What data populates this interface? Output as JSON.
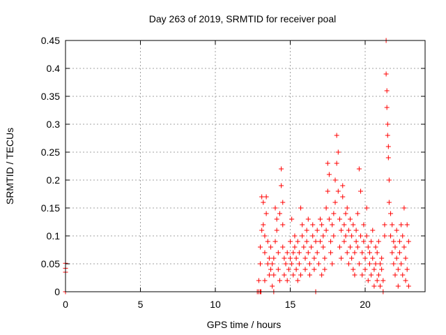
{
  "chart_data": {
    "type": "scatter",
    "title": "Day 263 of 2019, SRMTID for receiver poal",
    "xlabel": "GPS time / hours",
    "ylabel": "SRMTID / TECUs",
    "xlim": [
      0,
      24
    ],
    "ylim": [
      0,
      0.45
    ],
    "xticks": [
      0,
      5,
      10,
      15,
      20
    ],
    "xtick_labels": [
      "0",
      "5",
      "10",
      "15",
      "20"
    ],
    "yticks": [
      0,
      0.05,
      0.1,
      0.15,
      0.2,
      0.25,
      0.3,
      0.35,
      0.4,
      0.45
    ],
    "ytick_labels": [
      "0",
      "0.05",
      "0.1",
      "0.15",
      "0.2",
      "0.25",
      "0.3",
      "0.35",
      "0.4",
      "0.45"
    ],
    "grid": true,
    "marker": "+",
    "color": "#ff0000",
    "series": [
      {
        "name": "SRMTID",
        "points": [
          [
            0.0,
            0.0
          ],
          [
            0.0,
            0.035
          ],
          [
            0.0,
            0.042
          ],
          [
            0.0,
            0.051
          ],
          [
            12.8,
            0.0
          ],
          [
            12.9,
            0.0
          ],
          [
            13.0,
            0.0
          ],
          [
            13.05,
            0.0
          ],
          [
            12.9,
            0.02
          ],
          [
            13.0,
            0.05
          ],
          [
            13.0,
            0.08
          ],
          [
            13.1,
            0.11
          ],
          [
            13.1,
            0.17
          ],
          [
            13.2,
            0.12
          ],
          [
            13.2,
            0.16
          ],
          [
            13.3,
            0.1
          ],
          [
            13.3,
            0.07
          ],
          [
            13.3,
            0.02
          ],
          [
            13.4,
            0.14
          ],
          [
            13.4,
            0.17
          ],
          [
            13.5,
            0.05
          ],
          [
            13.5,
            0.09
          ],
          [
            13.6,
            0.06
          ],
          [
            13.6,
            0.03
          ],
          [
            13.7,
            0.04
          ],
          [
            13.7,
            0.08
          ],
          [
            13.8,
            0.01
          ],
          [
            13.8,
            0.05
          ],
          [
            13.9,
            0.06
          ],
          [
            13.9,
            0.03
          ],
          [
            13.9,
            0.0
          ],
          [
            14.0,
            0.09
          ],
          [
            14.0,
            0.15
          ],
          [
            14.1,
            0.13
          ],
          [
            14.1,
            0.11
          ],
          [
            14.2,
            0.07
          ],
          [
            14.2,
            0.04
          ],
          [
            14.3,
            0.02
          ],
          [
            14.3,
            0.14
          ],
          [
            14.4,
            0.19
          ],
          [
            14.4,
            0.22
          ],
          [
            14.5,
            0.16
          ],
          [
            14.5,
            0.12
          ],
          [
            14.5,
            0.08
          ],
          [
            14.6,
            0.06
          ],
          [
            14.6,
            0.03
          ],
          [
            14.7,
            0.05
          ],
          [
            14.8,
            0.07
          ],
          [
            14.8,
            0.02
          ],
          [
            14.9,
            0.04
          ],
          [
            15.0,
            0.06
          ],
          [
            15.0,
            0.09
          ],
          [
            15.1,
            0.13
          ],
          [
            15.1,
            0.05
          ],
          [
            15.2,
            0.03
          ],
          [
            15.2,
            0.07
          ],
          [
            15.3,
            0.08
          ],
          [
            15.3,
            0.1
          ],
          [
            15.4,
            0.04
          ],
          [
            15.4,
            0.06
          ],
          [
            15.5,
            0.09
          ],
          [
            15.5,
            0.02
          ],
          [
            15.6,
            0.07
          ],
          [
            15.6,
            0.05
          ],
          [
            15.7,
            0.03
          ],
          [
            15.7,
            0.15
          ],
          [
            15.8,
            0.1
          ],
          [
            15.8,
            0.12
          ],
          [
            15.9,
            0.08
          ],
          [
            16.0,
            0.06
          ],
          [
            16.0,
            0.04
          ],
          [
            16.1,
            0.11
          ],
          [
            16.1,
            0.09
          ],
          [
            16.2,
            0.07
          ],
          [
            16.2,
            0.13
          ],
          [
            16.3,
            0.03
          ],
          [
            16.3,
            0.05
          ],
          [
            16.4,
            0.08
          ],
          [
            16.5,
            0.1
          ],
          [
            16.5,
            0.12
          ],
          [
            16.6,
            0.06
          ],
          [
            16.6,
            0.04
          ],
          [
            16.7,
            0.09
          ],
          [
            16.7,
            0.0
          ],
          [
            16.8,
            0.11
          ],
          [
            16.8,
            0.07
          ],
          [
            16.9,
            0.05
          ],
          [
            17.0,
            0.13
          ],
          [
            17.0,
            0.09
          ],
          [
            17.1,
            0.12
          ],
          [
            17.1,
            0.03
          ],
          [
            17.2,
            0.1
          ],
          [
            17.2,
            0.08
          ],
          [
            17.3,
            0.06
          ],
          [
            17.3,
            0.04
          ],
          [
            17.4,
            0.11
          ],
          [
            17.4,
            0.15
          ],
          [
            17.5,
            0.23
          ],
          [
            17.5,
            0.18
          ],
          [
            17.6,
            0.21
          ],
          [
            17.6,
            0.13
          ],
          [
            17.7,
            0.09
          ],
          [
            17.7,
            0.07
          ],
          [
            17.8,
            0.12
          ],
          [
            17.8,
            0.05
          ],
          [
            17.9,
            0.14
          ],
          [
            17.9,
            0.1
          ],
          [
            18.0,
            0.16
          ],
          [
            18.0,
            0.2
          ],
          [
            18.1,
            0.23
          ],
          [
            18.1,
            0.28
          ],
          [
            18.2,
            0.25
          ],
          [
            18.2,
            0.18
          ],
          [
            18.3,
            0.13
          ],
          [
            18.3,
            0.08
          ],
          [
            18.4,
            0.11
          ],
          [
            18.4,
            0.06
          ],
          [
            18.5,
            0.17
          ],
          [
            18.5,
            0.19
          ],
          [
            18.6,
            0.12
          ],
          [
            18.6,
            0.09
          ],
          [
            18.7,
            0.14
          ],
          [
            18.7,
            0.1
          ],
          [
            18.8,
            0.07
          ],
          [
            18.8,
            0.15
          ],
          [
            18.9,
            0.05
          ],
          [
            18.9,
            0.11
          ],
          [
            19.0,
            0.08
          ],
          [
            19.0,
            0.13
          ],
          [
            19.1,
            0.06
          ],
          [
            19.1,
            0.1
          ],
          [
            19.2,
            0.04
          ],
          [
            19.2,
            0.12
          ],
          [
            19.3,
            0.07
          ],
          [
            19.3,
            0.03
          ],
          [
            19.4,
            0.09
          ],
          [
            19.4,
            0.11
          ],
          [
            19.5,
            0.14
          ],
          [
            19.5,
            0.08
          ],
          [
            19.6,
            0.05
          ],
          [
            19.6,
            0.22
          ],
          [
            19.7,
            0.18
          ],
          [
            19.7,
            0.1
          ],
          [
            19.8,
            0.07
          ],
          [
            19.8,
            0.03
          ],
          [
            19.9,
            0.12
          ],
          [
            19.9,
            0.09
          ],
          [
            20.0,
            0.06
          ],
          [
            20.0,
            0.04
          ],
          [
            20.1,
            0.1
          ],
          [
            20.1,
            0.15
          ],
          [
            20.2,
            0.08
          ],
          [
            20.2,
            0.02
          ],
          [
            20.3,
            0.05
          ],
          [
            20.3,
            0.07
          ],
          [
            20.4,
            0.09
          ],
          [
            20.4,
            0.03
          ],
          [
            20.5,
            0.06
          ],
          [
            20.5,
            0.11
          ],
          [
            20.6,
            0.04
          ],
          [
            20.6,
            0.01
          ],
          [
            20.7,
            0.08
          ],
          [
            20.7,
            0.05
          ],
          [
            20.8,
            0.02
          ],
          [
            20.8,
            0.07
          ],
          [
            20.9,
            0.03
          ],
          [
            20.9,
            0.09
          ],
          [
            21.0,
            0.05
          ],
          [
            21.0,
            0.01
          ],
          [
            21.1,
            0.04
          ],
          [
            21.1,
            0.06
          ],
          [
            21.2,
            0.02
          ],
          [
            21.2,
            0.0
          ],
          [
            21.3,
            0.12
          ],
          [
            21.3,
            0.1
          ],
          [
            21.4,
            0.45
          ],
          [
            21.4,
            0.39
          ],
          [
            21.45,
            0.36
          ],
          [
            21.45,
            0.33
          ],
          [
            21.5,
            0.3
          ],
          [
            21.5,
            0.28
          ],
          [
            21.55,
            0.26
          ],
          [
            21.55,
            0.24
          ],
          [
            21.6,
            0.2
          ],
          [
            21.6,
            0.16
          ],
          [
            21.7,
            0.14
          ],
          [
            21.7,
            0.1
          ],
          [
            21.8,
            0.07
          ],
          [
            21.8,
            0.12
          ],
          [
            21.9,
            0.09
          ],
          [
            21.9,
            0.05
          ],
          [
            22.0,
            0.03
          ],
          [
            22.0,
            0.08
          ],
          [
            22.1,
            0.11
          ],
          [
            22.1,
            0.06
          ],
          [
            22.2,
            0.01
          ],
          [
            22.2,
            0.04
          ],
          [
            22.3,
            0.07
          ],
          [
            22.3,
            0.09
          ],
          [
            22.4,
            0.12
          ],
          [
            22.4,
            0.05
          ],
          [
            22.5,
            0.03
          ],
          [
            22.5,
            0.1
          ],
          [
            22.6,
            0.15
          ],
          [
            22.6,
            0.08
          ],
          [
            22.7,
            0.06
          ],
          [
            22.7,
            0.02
          ],
          [
            22.8,
            0.04
          ],
          [
            22.8,
            0.12
          ],
          [
            22.9,
            0.09
          ],
          [
            22.9,
            0.01
          ]
        ]
      }
    ]
  }
}
